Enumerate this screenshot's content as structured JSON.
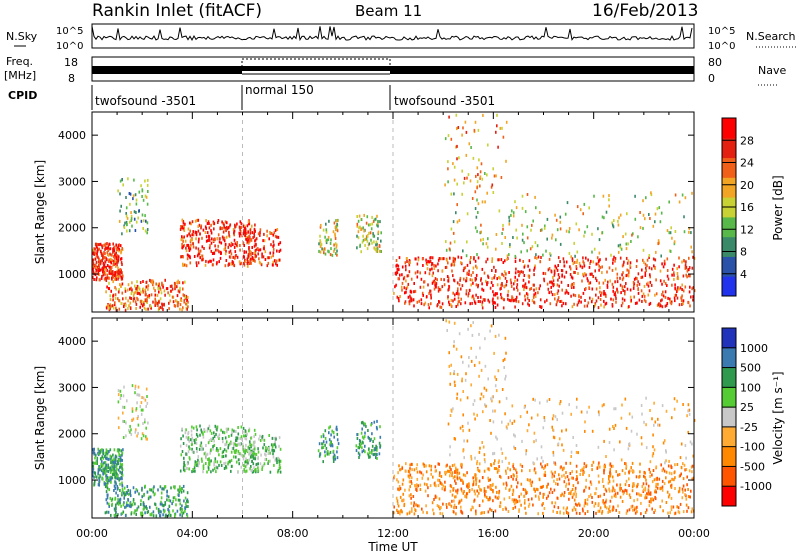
{
  "header": {
    "station": "Rankin Inlet (fitACF)",
    "beam": "Beam 11",
    "date": "16/Feb/2013"
  },
  "colors": {
    "power_scale": [
      "#2233ee",
      "#2a52a8",
      "#3a8a6a",
      "#58b84a",
      "#c8d234",
      "#f2a424",
      "#f06018",
      "#e42010",
      "#ff0000"
    ],
    "velocity_scale": [
      "#ff0000",
      "#ff5500",
      "#ff8800",
      "#ffaa33",
      "#c8c8c8",
      "#55cc33",
      "#2f9a4e",
      "#3a7ab0",
      "#2233bb"
    ],
    "ground_scatter": "#bdbdbd"
  },
  "chart_data": [
    {
      "type": "line",
      "name": "noise-panel",
      "left_label": "N.Sky",
      "right_label": "N.Search",
      "ytick_labels": [
        "10^5",
        "10^0"
      ],
      "x_range_hours": [
        0,
        24
      ]
    },
    {
      "type": "line",
      "name": "freq-panel",
      "left_label_1": "Freq.",
      "left_label_2": "[MHz]",
      "right_label": "Nave",
      "yticks_left": [
        "18",
        "8"
      ],
      "yticks_right": [
        "80",
        "0"
      ],
      "cpid_label": "CPID",
      "cpid_segments": [
        {
          "label": "twofsound -3501",
          "start_hour": 0,
          "end_hour": 6
        },
        {
          "label": "normal 150",
          "start_hour": 6,
          "end_hour": 12
        },
        {
          "label": "twofsound -3501",
          "start_hour": 12,
          "end_hour": 24
        }
      ]
    },
    {
      "type": "heatmap",
      "name": "power-panel",
      "ylabel": "Slant Range [km]",
      "ylim": [
        180,
        4500
      ],
      "yticks": [
        1000,
        2000,
        3000,
        4000
      ],
      "colorbar_label": "Power [dB]",
      "colorbar_ticks": [
        "4",
        "8",
        "12",
        "16",
        "20",
        "24",
        "28"
      ],
      "colorbar_range": [
        0,
        32
      ]
    },
    {
      "type": "heatmap",
      "name": "velocity-panel",
      "ylabel": "Slant Range [km]",
      "ylim": [
        180,
        4500
      ],
      "yticks": [
        1000,
        2000,
        3000,
        4000
      ],
      "colorbar_label": "Velocity [m s⁻¹]",
      "colorbar_ticks": [
        "-1000",
        "-500",
        "-100",
        "-25",
        "25",
        "100",
        "500",
        "1000"
      ],
      "xlabel": "Time UT",
      "xticks": [
        "00:00",
        "04:00",
        "08:00",
        "12:00",
        "16:00",
        "20:00",
        "00:00"
      ],
      "x_range_hours": [
        0,
        24
      ]
    }
  ]
}
